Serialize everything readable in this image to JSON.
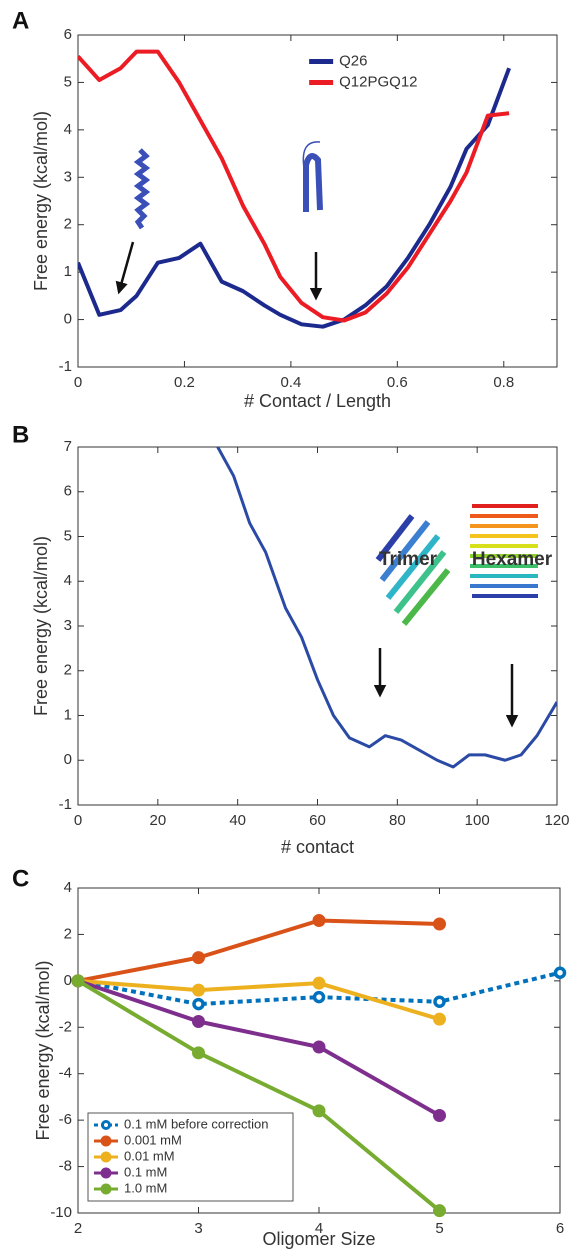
{
  "chart_data": [
    {
      "type": "line",
      "panel": "A",
      "x_label": "# Contact / Length",
      "y_label": "Free energy (kcal/mol)",
      "xlim": [
        0,
        0.9
      ],
      "xticks": [
        0,
        0.2,
        0.4,
        0.6,
        0.8
      ],
      "ylim": [
        -1,
        6
      ],
      "yticks": [
        -1,
        0,
        1,
        2,
        3,
        4,
        5,
        6
      ],
      "legend": "top",
      "x": [
        0,
        0.04,
        0.08,
        0.11,
        0.15,
        0.19,
        0.23,
        0.27,
        0.31,
        0.35,
        0.38,
        0.42,
        0.46,
        0.5,
        0.54,
        0.58,
        0.62,
        0.66,
        0.7,
        0.73,
        0.77,
        0.81
      ],
      "series": [
        {
          "name": "Q26",
          "color": "#1c2a8e",
          "values": [
            1.2,
            0.1,
            0.2,
            0.5,
            1.2,
            1.3,
            1.6,
            0.8,
            0.6,
            0.3,
            0.1,
            -0.1,
            -0.15,
            0.0,
            0.3,
            0.7,
            1.3,
            2.0,
            2.8,
            3.6,
            4.1,
            5.3
          ]
        },
        {
          "name": "Q12PGQ12",
          "color": "#ec1c24",
          "values": [
            5.55,
            5.05,
            5.3,
            5.65,
            5.65,
            5.0,
            4.2,
            3.4,
            2.4,
            1.6,
            0.9,
            0.35,
            0.05,
            -0.02,
            0.15,
            0.55,
            1.1,
            1.8,
            2.5,
            3.1,
            4.3,
            4.35
          ]
        }
      ]
    },
    {
      "type": "line",
      "panel": "B",
      "x_label": "# contact",
      "y_label": "Free energy (kcal/mol)",
      "xlim": [
        0,
        120
      ],
      "xticks": [
        0,
        20,
        40,
        60,
        80,
        100,
        120
      ],
      "ylim": [
        -1,
        7
      ],
      "yticks": [
        -1,
        0,
        1,
        2,
        3,
        4,
        5,
        6,
        7
      ],
      "annotations": [
        "Trimer",
        "Hexamer"
      ],
      "x": [
        35,
        39,
        43,
        47,
        52,
        56,
        60,
        64,
        68,
        73,
        77,
        81,
        84,
        90,
        94,
        98,
        102,
        107,
        111,
        115,
        120
      ],
      "series": [
        {
          "color": "#2b4aa6",
          "values": [
            7.0,
            6.35,
            5.3,
            4.65,
            3.4,
            2.75,
            1.8,
            1.0,
            0.5,
            0.3,
            0.55,
            0.45,
            0.3,
            0.0,
            -0.15,
            0.12,
            0.12,
            0.0,
            0.12,
            0.55,
            1.3
          ]
        }
      ]
    },
    {
      "type": "line",
      "panel": "C",
      "x_label": "Oligomer Size",
      "y_label": "Free energy (kcal/mol)",
      "xlim": [
        2,
        6
      ],
      "xticks": [
        2,
        3,
        4,
        5,
        6
      ],
      "ylim": [
        -10,
        4
      ],
      "yticks": [
        -10,
        -8,
        -6,
        -4,
        -2,
        0,
        2,
        4
      ],
      "legend": "lower left",
      "markers": true,
      "x": [
        2,
        3,
        4,
        5,
        6
      ],
      "series": [
        {
          "name": "0.1 mM before correction",
          "color": "#0072bd",
          "line_style": "dotted",
          "marker_face": "#ffffff",
          "values": [
            0,
            -1.0,
            -0.7,
            -0.9,
            0.35
          ]
        },
        {
          "name": "0.001 mM",
          "color": "#d95319",
          "values": [
            0,
            1.0,
            2.6,
            2.45,
            null
          ]
        },
        {
          "name": "0.01 mM",
          "color": "#edb120",
          "values": [
            0,
            -0.4,
            -0.1,
            -1.65,
            null
          ]
        },
        {
          "name": "0.1 mM",
          "color": "#7e2f8e",
          "values": [
            0,
            -1.75,
            -2.85,
            -5.8,
            null
          ]
        },
        {
          "name": "1.0 mM",
          "color": "#77ac30",
          "values": [
            0,
            -3.1,
            -5.6,
            -9.9,
            null
          ]
        }
      ]
    }
  ]
}
